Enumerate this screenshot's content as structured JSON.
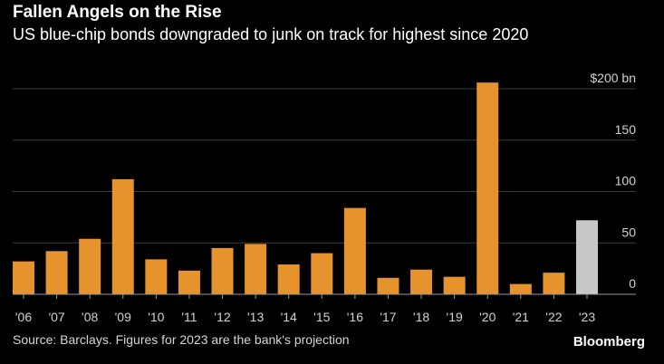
{
  "header": {
    "title": "Fallen Angels on the Rise",
    "subtitle": "US blue-chip bonds downgraded to junk on track for highest since 2020"
  },
  "footer": {
    "source": "Source: Barclays. Figures for 2023 are the bank's projection",
    "brand": "Bloomberg"
  },
  "colors": {
    "actual": "#e6932d",
    "projection": "#c8c8c8",
    "grid": "#3c3c3c",
    "axis": "#9a9a9a"
  },
  "chart_data": {
    "type": "bar",
    "categories": [
      "'06",
      "'07",
      "'08",
      "'09",
      "'10",
      "'11",
      "'12",
      "'13",
      "'14",
      "'15",
      "'16",
      "'17",
      "'18",
      "'19",
      "'20",
      "'21",
      "'22",
      "'23"
    ],
    "values": [
      32,
      42,
      54,
      112,
      34,
      23,
      45,
      49,
      29,
      40,
      84,
      16,
      24,
      17,
      206,
      10,
      21,
      72
    ],
    "projection_categories": [
      "'23"
    ],
    "ylim": [
      0,
      200
    ],
    "yticks": [
      0,
      50,
      100,
      150,
      200
    ],
    "ytick_labels": [
      "0",
      "50",
      "100",
      "150",
      "$200 bn"
    ],
    "xlabel": "",
    "ylabel": "",
    "grid": true
  }
}
